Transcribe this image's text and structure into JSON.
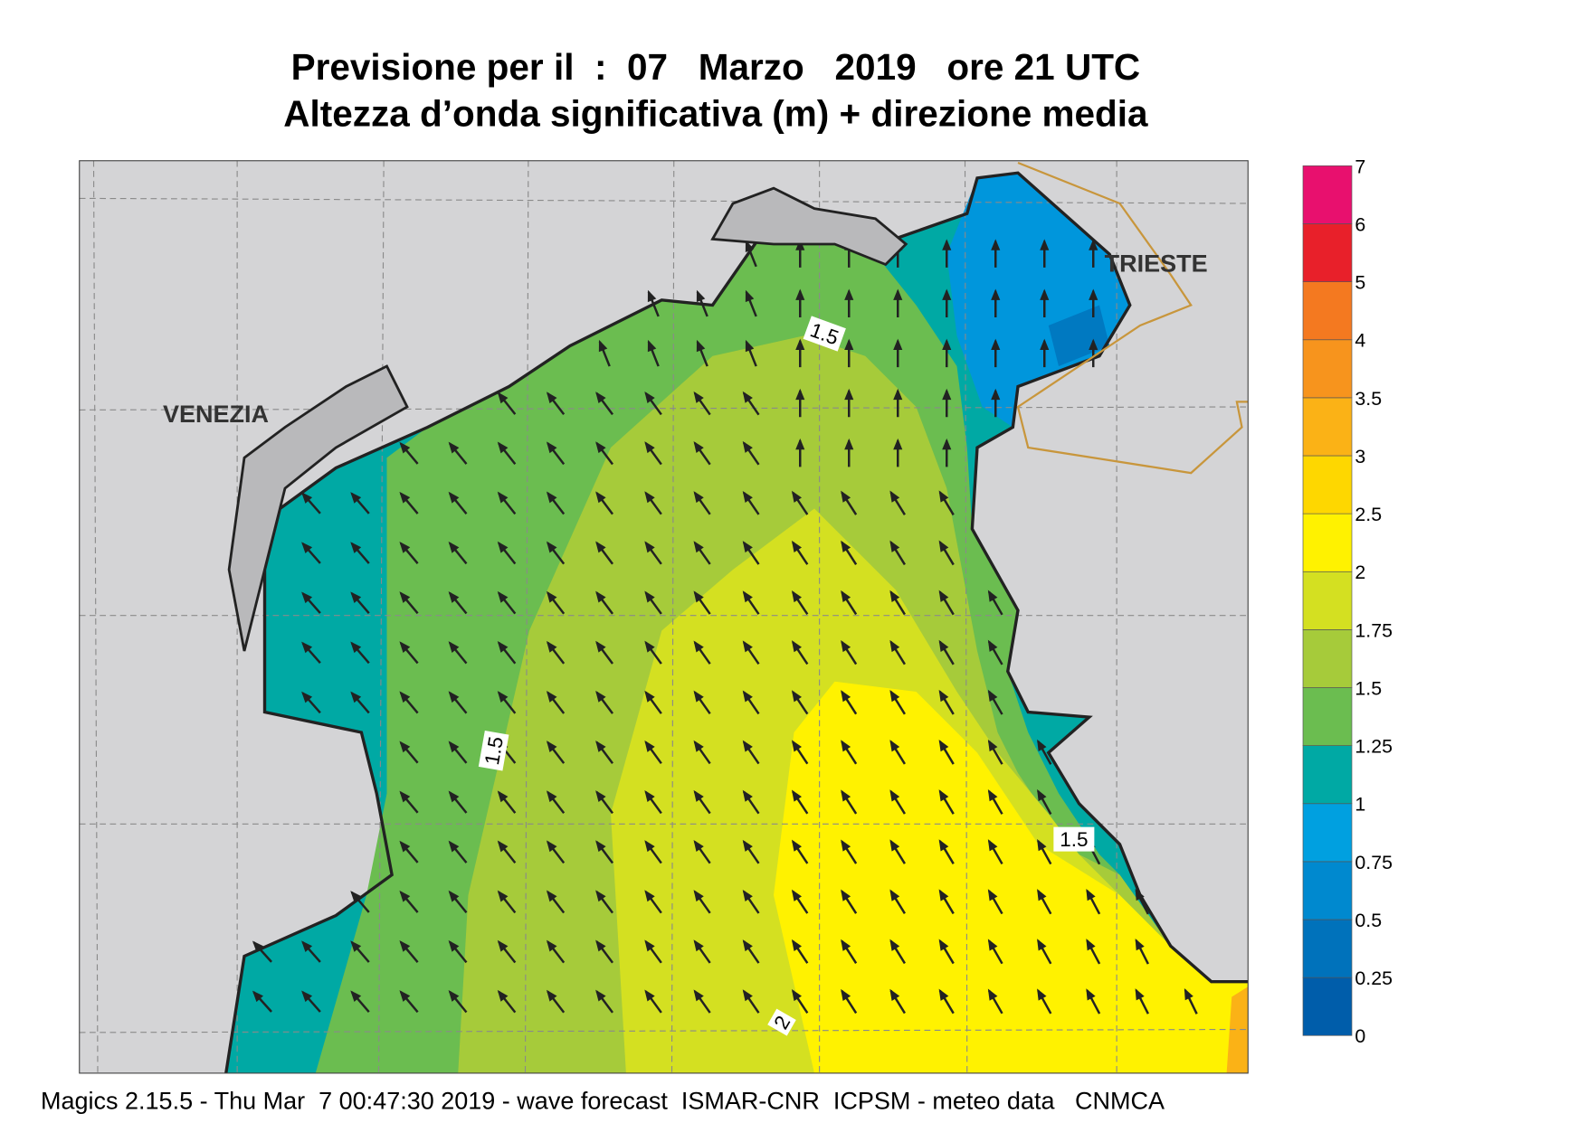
{
  "title": "Previsione per il  :  07   Marzo   2019   ore 21 UTC",
  "subtitle": "Altezza d’onda significativa (m) + direzione media",
  "places": [
    "VENEZIA",
    "TRIESTE"
  ],
  "contour_labels": [
    "1.5",
    "1.5",
    "1.5",
    "2"
  ],
  "colorbar": {
    "levels": [
      0,
      0.25,
      0.5,
      0.75,
      1,
      1.25,
      1.5,
      1.75,
      2,
      2.5,
      3,
      3.5,
      4,
      5,
      6,
      7
    ],
    "colors": [
      "#005daa",
      "#0072bb",
      "#0089cf",
      "#00a0e0",
      "#00a9a4",
      "#6bbd50",
      "#a6cb3a",
      "#d4e021",
      "#fff200",
      "#fed700",
      "#fbb216",
      "#f7941d",
      "#f47920",
      "#e8202a",
      "#e8106e"
    ]
  },
  "footer": "Magics 2.15.5 - Thu Mar  7 00:47:30 2019 - wave forecast  ISMAR-CNR  ICPSM - meteo data   CNMCA"
}
